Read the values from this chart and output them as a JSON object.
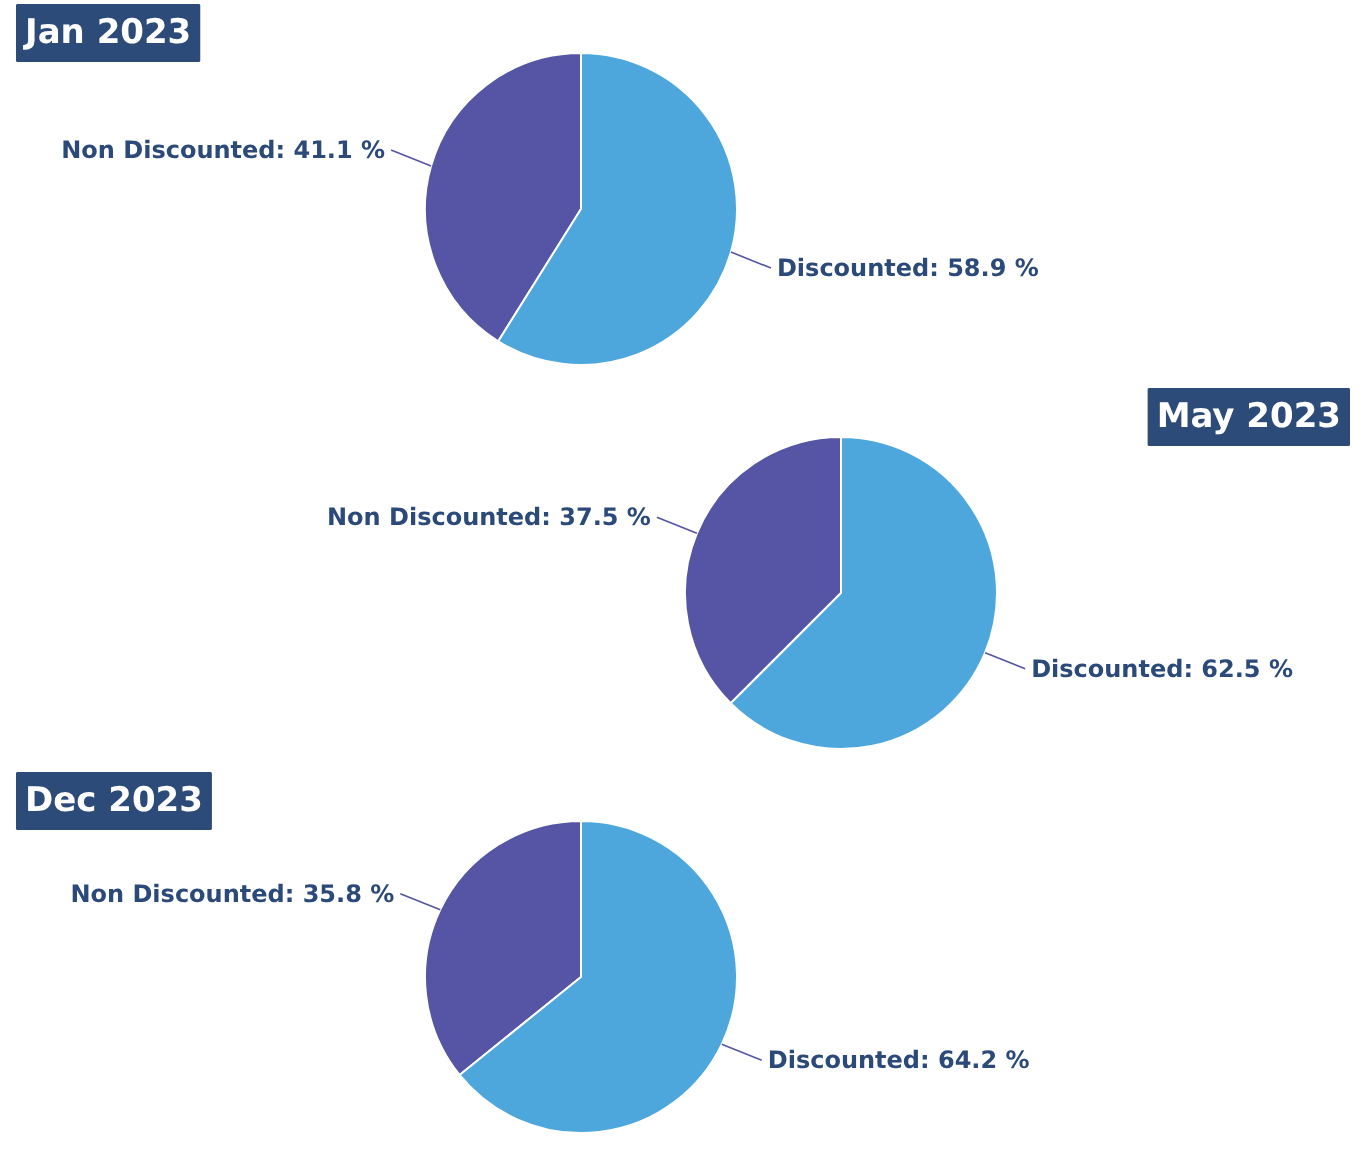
{
  "chart_data": [
    {
      "type": "pie",
      "title": "Jan 2023",
      "categories": [
        "Non Discounted",
        "Discounted"
      ],
      "values": [
        41.1,
        58.9
      ],
      "colors": [
        "#5655a5",
        "#4ea7dc"
      ],
      "value_labels": [
        "41.1 %",
        "58.9 %"
      ]
    },
    {
      "type": "pie",
      "title": "May 2023",
      "categories": [
        "Non Discounted",
        "Discounted"
      ],
      "values": [
        37.5,
        62.5
      ],
      "colors": [
        "#5655a5",
        "#4ea7dc"
      ],
      "value_labels": [
        "37.5 %",
        "62.5 %"
      ]
    },
    {
      "type": "pie",
      "title": "Dec 2023",
      "categories": [
        "Non Discounted",
        "Discounted"
      ],
      "values": [
        35.8,
        64.2
      ],
      "colors": [
        "#5655a5",
        "#4ea7dc"
      ],
      "value_labels": [
        "35.8 %",
        "64.2 %"
      ]
    }
  ]
}
